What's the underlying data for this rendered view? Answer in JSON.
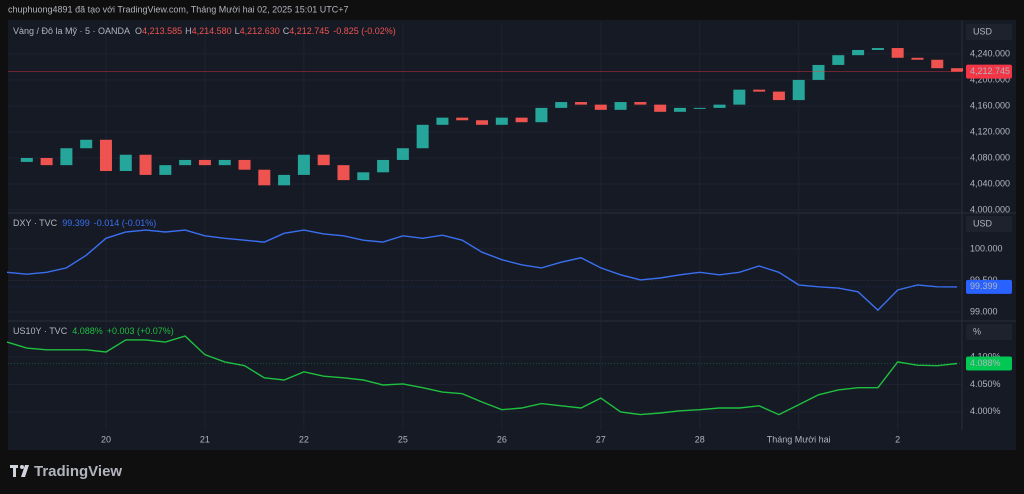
{
  "header": {
    "text": "chuphuong4891 đã tạo với TradingView.com, Tháng Mười hai 02, 2025 15:01 UTC+7"
  },
  "footer": {
    "brand": "TradingView"
  },
  "chart_data": [
    {
      "type": "candlestick",
      "name": "Vàng / Đô la Mỹ · 5 · OANDA",
      "legend_values": [
        {
          "label": "O",
          "value": "4,213.585"
        },
        {
          "label": "H",
          "value": "4,214.580"
        },
        {
          "label": "L",
          "value": "4,212.630"
        },
        {
          "label": "C",
          "value": "4,212.745"
        }
      ],
      "change": "-0.825 (-0.02%)",
      "unit": "USD",
      "last_label": "4,212.745",
      "up_color": "#26a69a",
      "down_color": "#ef5350",
      "legend_color": "#ef5350",
      "last_color": "#f23645",
      "x": [
        0,
        0.2,
        0.4,
        0.6,
        0.8,
        1,
        1.2,
        1.4,
        1.6,
        1.8,
        2,
        2.2,
        2.4,
        2.6,
        2.8,
        3,
        3.2,
        3.4,
        3.6,
        3.8,
        4,
        4.2,
        4.4,
        4.6,
        4.8,
        5,
        5.2,
        5.4,
        5.6,
        5.8,
        6,
        6.2,
        6.4,
        6.6,
        6.8,
        7,
        7.2,
        7.4,
        7.6,
        7.8,
        8,
        8.2,
        8.4,
        8.6,
        8.8,
        9,
        9.2,
        9.4,
        9.6
      ],
      "values": [
        4074,
        4080,
        4069,
        4095,
        4108,
        4060,
        4085,
        4054,
        4069,
        4077,
        4069,
        4077,
        4062,
        4038,
        4054,
        4085,
        4069,
        4046,
        4058,
        4077,
        4095,
        4131,
        4142,
        4138,
        4131,
        4142,
        4135,
        4157,
        4166,
        4162,
        4154,
        4166,
        4162,
        4151,
        4157,
        4157,
        4162,
        4185,
        4182,
        4169,
        4200,
        4223,
        4238,
        4246,
        4249,
        4234,
        4231,
        4218,
        4212.745
      ],
      "xlim": [
        0.01,
        9.65
      ],
      "ylim": [
        3997,
        4289
      ],
      "yticks": [
        {
          "value": 4000,
          "label": "4,000.000"
        },
        {
          "value": 4040,
          "label": "4,040.000"
        },
        {
          "value": 4080,
          "label": "4,080.000"
        },
        {
          "value": 4120,
          "label": "4,120.000"
        },
        {
          "value": 4160,
          "label": "4,160.000"
        },
        {
          "value": 4200,
          "label": "4,200.000"
        },
        {
          "value": 4240,
          "label": "4,240.000"
        }
      ],
      "grid": true
    },
    {
      "type": "line",
      "name": "DXY · TVC",
      "legend_values": [
        {
          "value": "99.399"
        }
      ],
      "change": "-0.014 (-0.01%)",
      "unit": "USD",
      "last_label": "99.399",
      "color": "#3a6ff0",
      "legend_color": "#3a6ff0",
      "last_color": "#2962ff",
      "x": [
        0,
        0.2,
        0.4,
        0.6,
        0.8,
        1,
        1.2,
        1.4,
        1.6,
        1.8,
        2,
        2.2,
        2.4,
        2.6,
        2.8,
        3,
        3.2,
        3.4,
        3.6,
        3.8,
        4,
        4.2,
        4.4,
        4.6,
        4.8,
        5,
        5.2,
        5.4,
        5.6,
        5.8,
        6,
        6.2,
        6.4,
        6.6,
        6.8,
        7,
        7.2,
        7.4,
        7.6,
        7.8,
        8,
        8.2,
        8.4,
        8.6,
        8.8,
        9,
        9.2,
        9.4,
        9.6
      ],
      "values": [
        99.63,
        99.6,
        99.63,
        99.7,
        99.9,
        100.17,
        100.27,
        100.3,
        100.27,
        100.3,
        100.21,
        100.17,
        100.14,
        100.11,
        100.25,
        100.3,
        100.24,
        100.21,
        100.14,
        100.11,
        100.21,
        100.17,
        100.22,
        100.14,
        99.95,
        99.83,
        99.75,
        99.7,
        99.79,
        99.86,
        99.7,
        99.59,
        99.51,
        99.54,
        99.59,
        99.63,
        99.59,
        99.63,
        99.73,
        99.63,
        99.43,
        99.4,
        99.38,
        99.32,
        99.03,
        99.35,
        99.43,
        99.4,
        99.399
      ],
      "xlim": [
        0.01,
        9.65
      ],
      "ylim": [
        98.873,
        100.556
      ],
      "yticks": [
        {
          "value": 99,
          "label": "99.000"
        },
        {
          "value": 99.5,
          "label": "99.500"
        },
        {
          "value": 100,
          "label": "100.000"
        }
      ],
      "grid": true
    },
    {
      "type": "line",
      "name": "US10Y · TVC",
      "legend_values": [
        {
          "value": "4.088%"
        }
      ],
      "change": "+0.003 (+0.07%)",
      "unit": "%",
      "last_label": "4.088%",
      "color": "#1fbf3f",
      "legend_color": "#1fbf3f",
      "last_color": "#00c853",
      "x": [
        0,
        0.2,
        0.4,
        0.6,
        0.8,
        1,
        1.2,
        1.4,
        1.6,
        1.8,
        2,
        2.2,
        2.4,
        2.6,
        2.8,
        3,
        3.2,
        3.4,
        3.6,
        3.8,
        4,
        4.2,
        4.4,
        4.6,
        4.8,
        5,
        5.2,
        5.4,
        5.6,
        5.8,
        6,
        6.2,
        6.4,
        6.6,
        6.8,
        7,
        7.2,
        7.4,
        7.6,
        7.8,
        8,
        8.2,
        8.4,
        8.6,
        8.8,
        9,
        9.2,
        9.4,
        9.6
      ],
      "values": [
        4.127,
        4.116,
        4.113,
        4.113,
        4.113,
        4.109,
        4.131,
        4.131,
        4.127,
        4.138,
        4.104,
        4.091,
        4.084,
        4.062,
        4.058,
        4.073,
        4.065,
        4.062,
        4.058,
        4.049,
        4.051,
        4.044,
        4.036,
        4.033,
        4.018,
        4.004,
        4.007,
        4.015,
        4.011,
        4.007,
        4.025,
        4.0,
        3.995,
        3.998,
        4.002,
        4.004,
        4.007,
        4.007,
        4.011,
        3.995,
        4.013,
        4.031,
        4.04,
        4.044,
        4.044,
        4.091,
        4.085,
        4.084,
        4.088
      ],
      "xlim": [
        0.01,
        9.65
      ],
      "ylim": [
        3.967,
        4.1636
      ],
      "yticks": [
        {
          "value": 4.0,
          "label": "4.000%"
        },
        {
          "value": 4.05,
          "label": "4.050%"
        },
        {
          "value": 4.1,
          "label": "4.100%"
        }
      ],
      "xticks": [
        {
          "value": 1,
          "label": "20"
        },
        {
          "value": 2,
          "label": "21"
        },
        {
          "value": 3,
          "label": "22"
        },
        {
          "value": 4,
          "label": "25"
        },
        {
          "value": 5,
          "label": "26"
        },
        {
          "value": 6,
          "label": "27"
        },
        {
          "value": 7,
          "label": "28"
        },
        {
          "value": 8,
          "label": "Tháng Mười hai"
        },
        {
          "value": 9,
          "label": "2"
        }
      ],
      "grid": true
    }
  ]
}
